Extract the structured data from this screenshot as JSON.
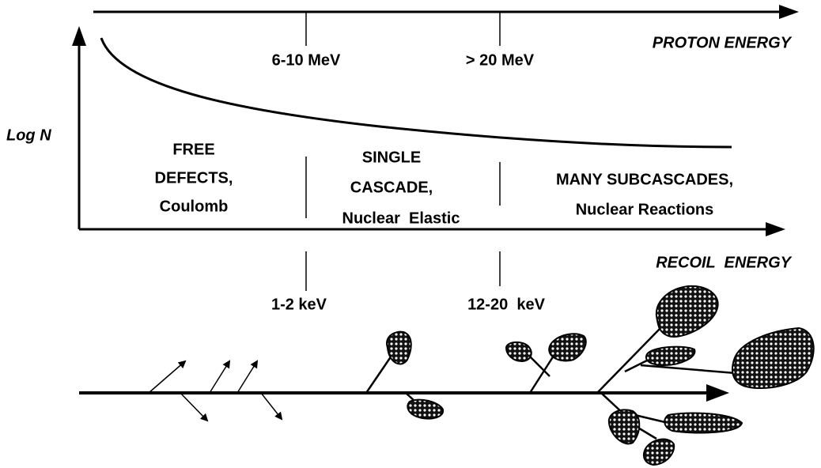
{
  "proton_axis": {
    "label": "PROTON ENERGY",
    "thresholds": [
      "6-10 MeV",
      "> 20 MeV"
    ]
  },
  "y_axis": {
    "label": "Log N"
  },
  "regions": [
    {
      "lines": [
        "FREE",
        "DEFECTS,",
        "Coulomb"
      ]
    },
    {
      "lines": [
        "SINGLE",
        "CASCADE,",
        "Nuclear  Elastic"
      ]
    },
    {
      "lines": [
        "MANY SUBCASCADES,",
        "Nuclear Reactions"
      ]
    }
  ],
  "recoil_axis": {
    "label": "RECOIL  ENERGY",
    "thresholds": [
      "1-2 keV",
      "12-20  keV"
    ]
  }
}
